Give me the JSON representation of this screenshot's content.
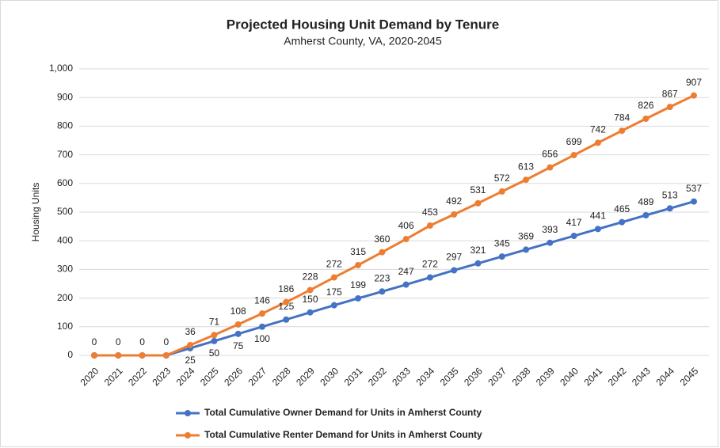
{
  "chart_data": {
    "type": "line",
    "title": "Projected Housing Unit Demand by Tenure",
    "subtitle": "Amherst County, VA, 2020-2045",
    "y_label": "Housing Units",
    "categories": [
      "2020",
      "2021",
      "2022",
      "2023",
      "2024",
      "2025",
      "2026",
      "2027",
      "2028",
      "2029",
      "2030",
      "2031",
      "2032",
      "2033",
      "2034",
      "2035",
      "2036",
      "2037",
      "2038",
      "2039",
      "2040",
      "2041",
      "2042",
      "2043",
      "2044",
      "2045"
    ],
    "series": [
      {
        "name": "Total Cumulative Owner Demand for Units in Amherst County",
        "color": "#4472c4",
        "values": [
          0,
          0,
          0,
          0,
          25,
          50,
          75,
          100,
          125,
          150,
          175,
          199,
          223,
          247,
          272,
          297,
          321,
          345,
          369,
          393,
          417,
          441,
          465,
          489,
          513,
          537
        ]
      },
      {
        "name": "Total Cumulative Renter Demand for Units in Amherst County",
        "color": "#ed7d31",
        "values": [
          0,
          0,
          0,
          0,
          36,
          71,
          108,
          146,
          186,
          228,
          272,
          315,
          360,
          406,
          453,
          492,
          531,
          572,
          613,
          656,
          699,
          742,
          784,
          826,
          867,
          907
        ]
      }
    ],
    "ylim": [
      0,
      1000
    ],
    "yticks": [
      0,
      100,
      200,
      300,
      400,
      500,
      600,
      700,
      800,
      900,
      {
        "value": 1000,
        "label": "1,000"
      }
    ],
    "grid": true,
    "legend": "bottom"
  }
}
